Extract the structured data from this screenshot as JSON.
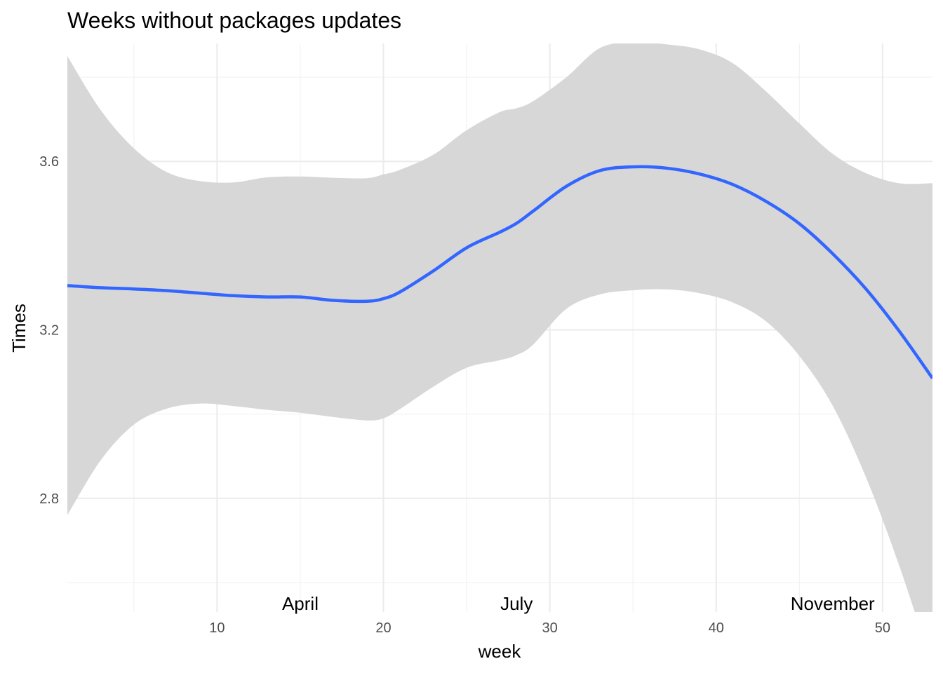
{
  "chart_data": {
    "type": "line",
    "title": "Weeks without packages updates",
    "xlabel": "week",
    "ylabel": "Times",
    "xlim": [
      1,
      53
    ],
    "ylim": [
      2.53,
      3.88
    ],
    "x_ticks": [
      10,
      20,
      30,
      40,
      50
    ],
    "x_tick_labels": [
      "10",
      "20",
      "30",
      "40",
      "50"
    ],
    "y_ticks": [
      2.8,
      3.2,
      3.6
    ],
    "y_tick_labels": [
      "2.8",
      "3.2",
      "3.6"
    ],
    "grid": true,
    "legend": "none",
    "colors": {
      "line": "#3366ff",
      "band": "#d6d6d6",
      "grid": "#ebebeb"
    },
    "series": [
      {
        "x": [
          1,
          3,
          5,
          7,
          9,
          11,
          13,
          15,
          17,
          19,
          20,
          21,
          23,
          25,
          27,
          28,
          29,
          31,
          33,
          35,
          37,
          39,
          41,
          43,
          45,
          47,
          49,
          51,
          53
        ],
        "y": [
          3.305,
          3.3,
          3.297,
          3.293,
          3.287,
          3.281,
          3.278,
          3.278,
          3.27,
          3.268,
          3.274,
          3.29,
          3.34,
          3.395,
          3.432,
          3.453,
          3.482,
          3.541,
          3.578,
          3.587,
          3.584,
          3.57,
          3.545,
          3.505,
          3.452,
          3.381,
          3.297,
          3.197,
          3.085
        ],
        "lower": [
          2.76,
          2.89,
          2.975,
          3.013,
          3.025,
          3.019,
          3.01,
          3.003,
          2.993,
          2.985,
          2.99,
          3.012,
          3.065,
          3.11,
          3.128,
          3.14,
          3.165,
          3.25,
          3.284,
          3.294,
          3.296,
          3.287,
          3.265,
          3.22,
          3.138,
          3.02,
          2.85,
          2.64,
          2.4
        ],
        "upper": [
          3.85,
          3.722,
          3.631,
          3.574,
          3.553,
          3.55,
          3.562,
          3.564,
          3.561,
          3.56,
          3.569,
          3.58,
          3.616,
          3.674,
          3.717,
          3.726,
          3.743,
          3.8,
          3.869,
          3.883,
          3.878,
          3.866,
          3.833,
          3.766,
          3.69,
          3.618,
          3.572,
          3.548,
          3.548
        ]
      }
    ],
    "annotations": [
      {
        "x": 15,
        "y": 2.55,
        "label": "April"
      },
      {
        "x": 28,
        "y": 2.55,
        "label": "July"
      },
      {
        "x": 47,
        "y": 2.55,
        "label": "November"
      }
    ]
  }
}
